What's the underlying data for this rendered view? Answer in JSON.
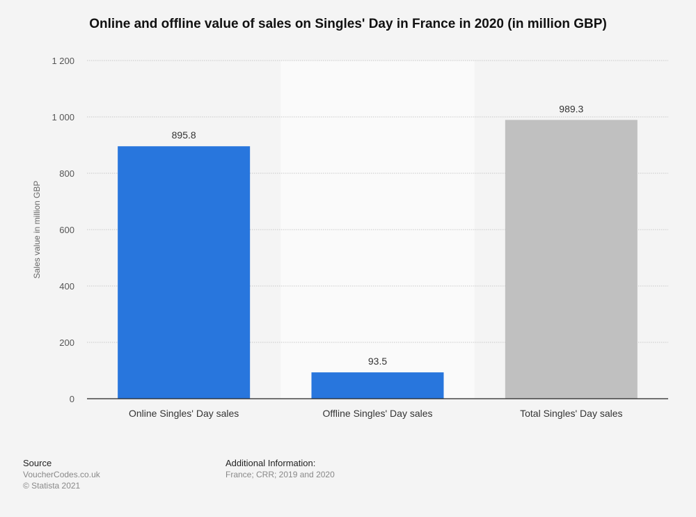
{
  "chart_data": {
    "type": "bar",
    "title": "Online and offline value of sales on Singles' Day in France in 2020 (in million GBP)",
    "xlabel": "",
    "ylabel": "Sales value in million GBP",
    "categories": [
      "Online Singles' Day sales",
      "Offline Singles' Day sales",
      "Total Singles' Day sales"
    ],
    "values": [
      895.8,
      93.5,
      989.3
    ],
    "data_labels": [
      "895.8",
      "93.5",
      "989.3"
    ],
    "bar_colors": [
      "#2876dd",
      "#2876dd",
      "#c0c0c0"
    ],
    "ylim": [
      0,
      1200
    ],
    "yticks": [
      0,
      200,
      400,
      600,
      800,
      1000,
      1200
    ],
    "ytick_labels": [
      "0",
      "200",
      "400",
      "600",
      "800",
      "1 000",
      "1 200"
    ],
    "grid": true,
    "legend": "none"
  },
  "footer": {
    "source_heading": "Source",
    "source": "VoucherCodes.co.uk",
    "copyright": "© Statista 2021",
    "info_heading": "Additional Information:",
    "info": "France; CRR; 2019 and 2020"
  }
}
